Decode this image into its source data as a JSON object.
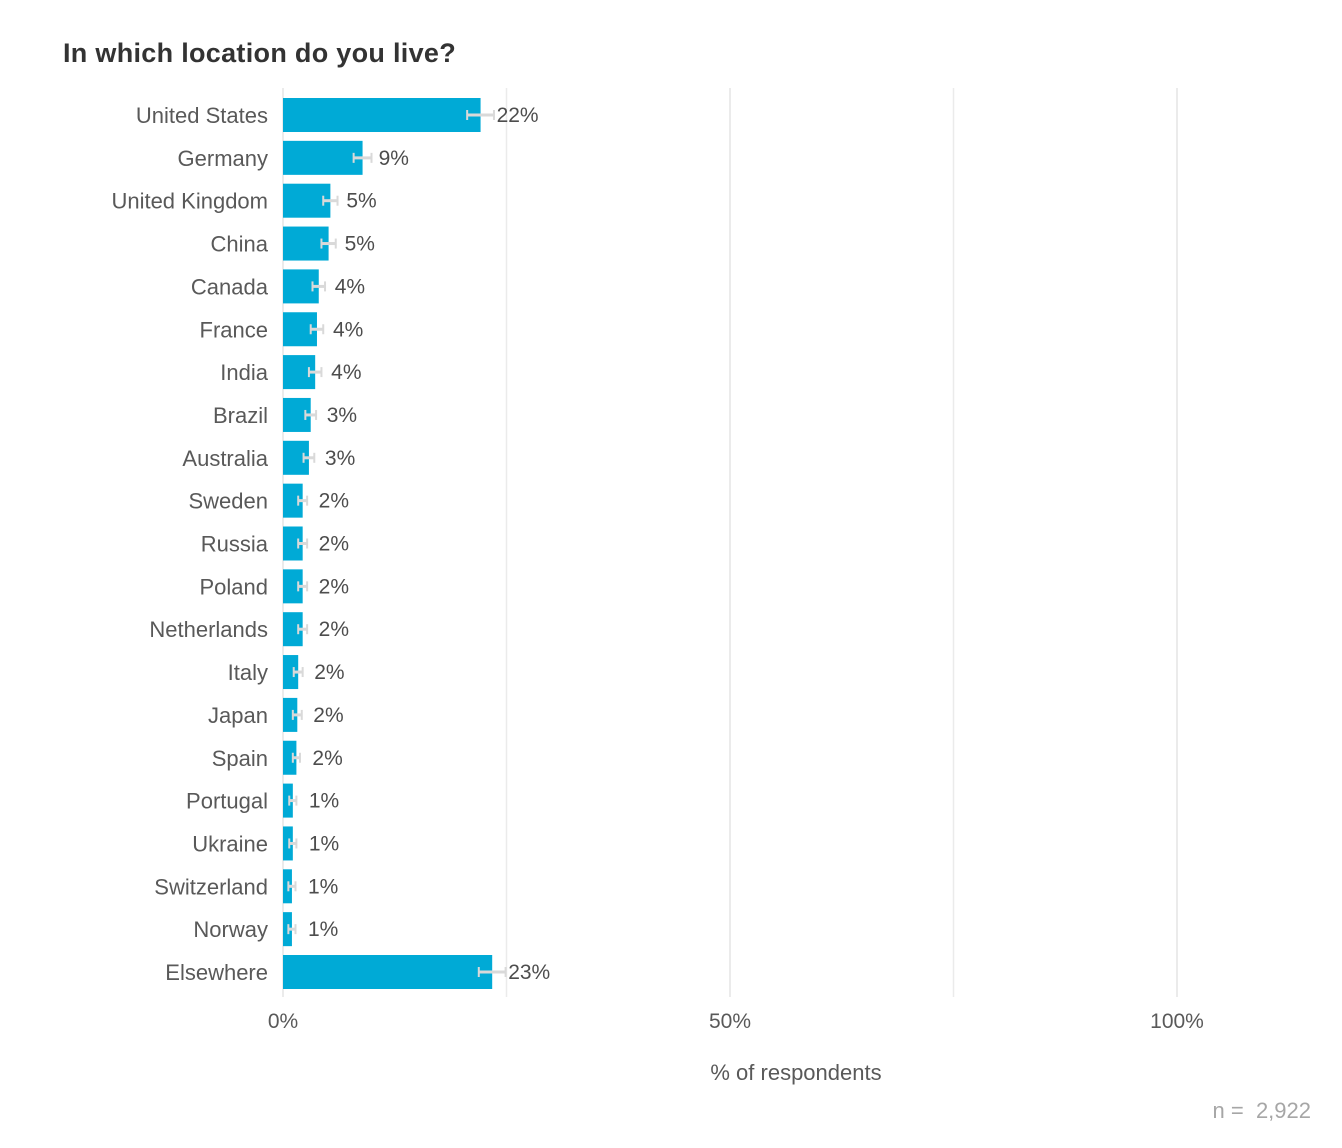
{
  "chart_data": {
    "type": "bar",
    "orientation": "horizontal",
    "title": "In which location do you live?",
    "xlabel": "% of respondents",
    "ylabel": "",
    "xlim": [
      0,
      100
    ],
    "x_ticks": [
      "0%",
      "50%",
      "100%"
    ],
    "grid": true,
    "bar_color": "#00aad6",
    "error_bar_color": "#d9d9d9",
    "categories": [
      "United States",
      "Germany",
      "United Kingdom",
      "China",
      "Canada",
      "France",
      "India",
      "Brazil",
      "Australia",
      "Sweden",
      "Russia",
      "Poland",
      "Netherlands",
      "Italy",
      "Japan",
      "Spain",
      "Portugal",
      "Ukraine",
      "Switzerland",
      "Norway",
      "Elsewhere"
    ],
    "values": [
      22.1,
      8.9,
      5.3,
      5.1,
      4.0,
      3.8,
      3.6,
      3.1,
      2.9,
      2.2,
      2.2,
      2.2,
      2.2,
      1.7,
      1.6,
      1.5,
      1.1,
      1.1,
      1.0,
      1.0,
      23.4
    ],
    "value_labels": [
      "22%",
      "9%",
      "5%",
      "5%",
      "4%",
      "4%",
      "4%",
      "3%",
      "3%",
      "2%",
      "2%",
      "2%",
      "2%",
      "2%",
      "2%",
      "2%",
      "1%",
      "1%",
      "1%",
      "1%",
      "23%"
    ],
    "error_margin": [
      1.5,
      1.0,
      0.8,
      0.8,
      0.7,
      0.7,
      0.7,
      0.6,
      0.6,
      0.5,
      0.5,
      0.5,
      0.5,
      0.5,
      0.5,
      0.4,
      0.4,
      0.4,
      0.4,
      0.4,
      1.5
    ]
  },
  "footer": {
    "n_label": "n =",
    "n_value": "2,922"
  }
}
